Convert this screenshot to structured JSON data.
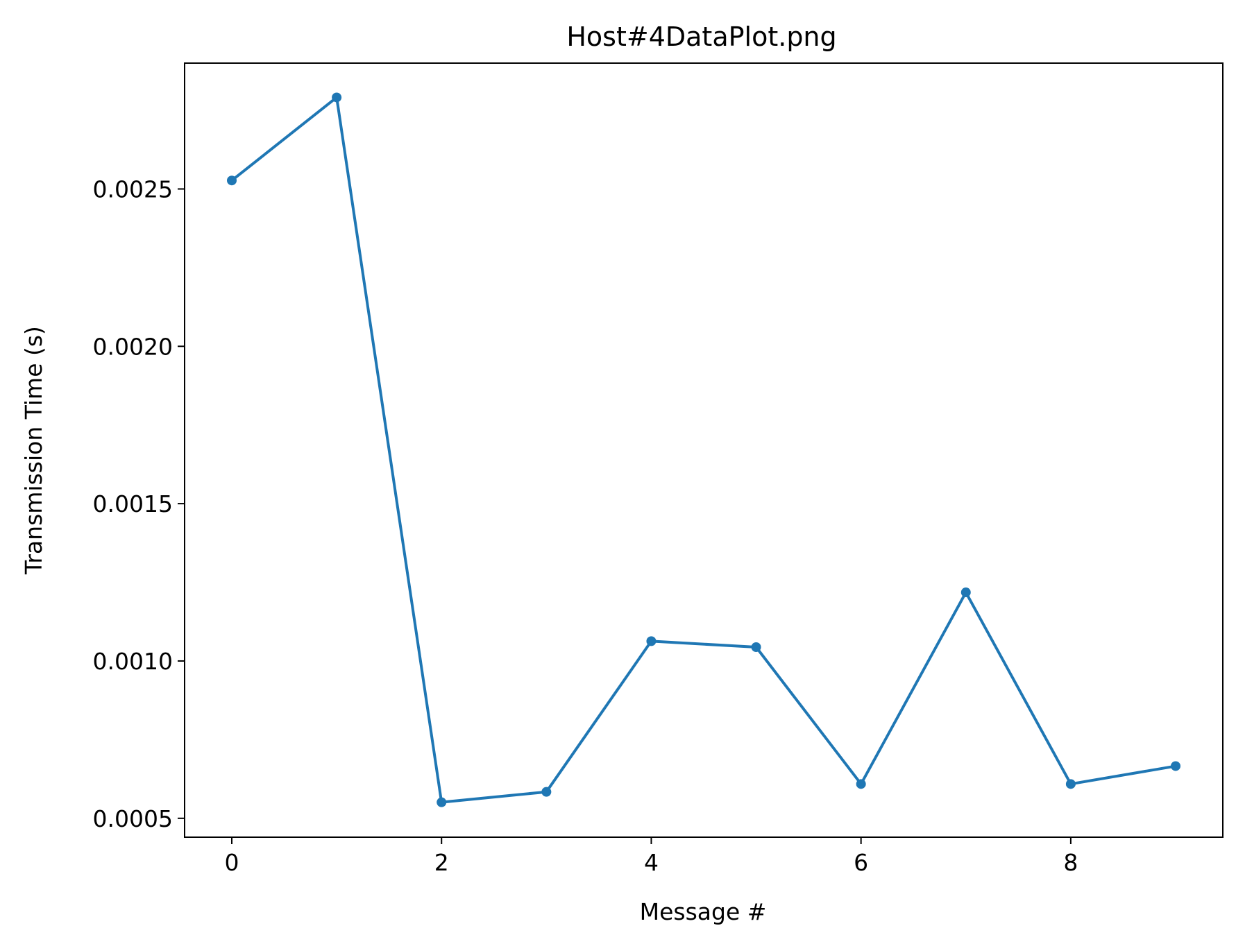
{
  "chart_data": {
    "type": "line",
    "title": "Host#4DataPlot.png",
    "xlabel": "Message #",
    "ylabel": "Transmission Time (s)",
    "x": [
      0,
      1,
      2,
      3,
      4,
      5,
      6,
      7,
      8,
      9
    ],
    "series": [
      {
        "values": [
          0.002527,
          0.002791,
          0.000551,
          0.000584,
          0.001063,
          0.001044,
          0.000609,
          0.001218,
          0.000609,
          0.000666
        ],
        "color": "#1f77b4",
        "marker": "circle"
      }
    ],
    "xticks": [
      0,
      2,
      4,
      6,
      8
    ],
    "xtick_labels": [
      "0",
      "2",
      "4",
      "6",
      "8"
    ],
    "yticks": [
      0.0005,
      0.001,
      0.0015,
      0.002,
      0.0025
    ],
    "ytick_labels": [
      "0.0005",
      "0.0010",
      "0.0015",
      "0.0020",
      "0.0025"
    ],
    "xlim": [
      -0.45,
      9.45
    ],
    "ylim": [
      0.00044,
      0.0029
    ],
    "grid": false,
    "legend": "none"
  }
}
